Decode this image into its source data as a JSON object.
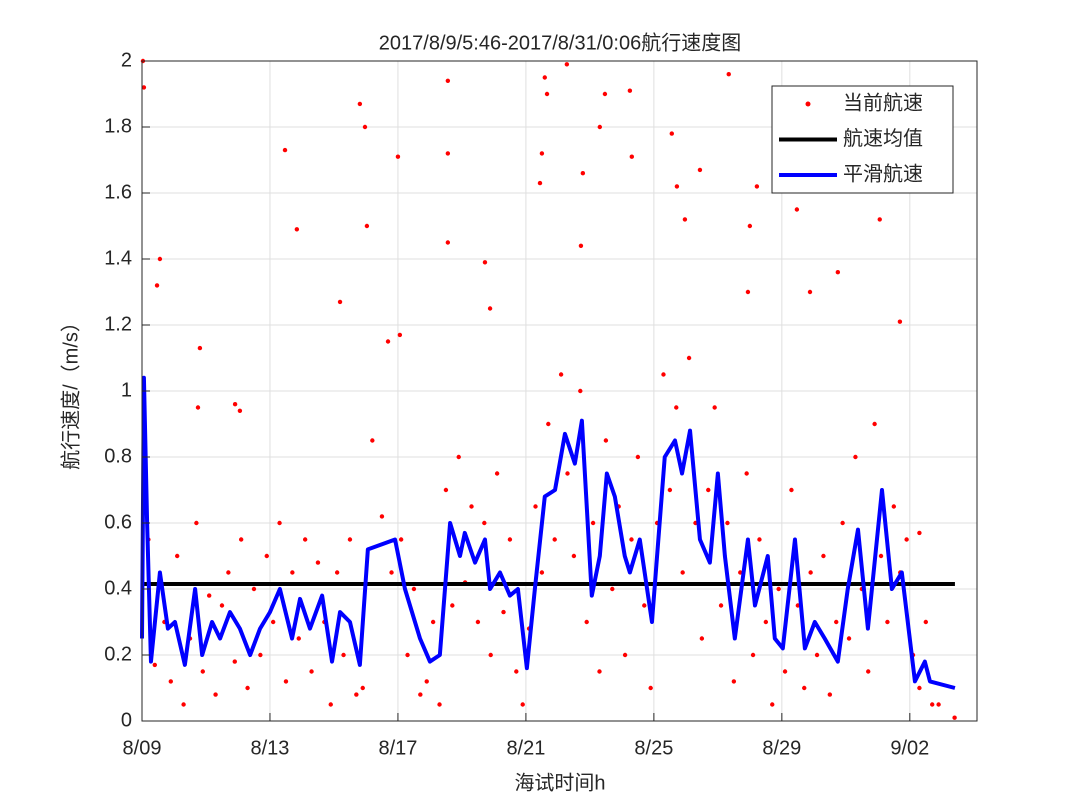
{
  "chart_data": {
    "type": "scatter",
    "title": "2017/8/9/5:46-2017/8/31/0:06航行速度图",
    "x_label": "海试时间h",
    "y_label": "航行速度/（m/s）",
    "xlim": [
      0,
      26.1
    ],
    "ylim": [
      0,
      2
    ],
    "xticks": [
      {
        "value": 0,
        "label": "8/09"
      },
      {
        "value": 4,
        "label": "8/13"
      },
      {
        "value": 8,
        "label": "8/17"
      },
      {
        "value": 12,
        "label": "8/21"
      },
      {
        "value": 16,
        "label": "8/25"
      },
      {
        "value": 20,
        "label": "8/29"
      },
      {
        "value": 24,
        "label": "9/02"
      }
    ],
    "yticks": [
      0,
      0.2,
      0.4,
      0.6,
      0.8,
      1,
      1.2,
      1.4,
      1.6,
      1.8,
      2
    ],
    "grid": true,
    "legend": "upper right",
    "series": [
      {
        "name": "当前航速",
        "type": "scatter",
        "color": "#ff0000",
        "x": [
          0.03,
          0.06,
          0.56,
          0.47,
          1.81,
          1.75,
          2.91,
          3.06,
          4.47,
          4.84,
          6.19,
          6.81,
          6.97,
          7.03,
          8.0,
          8.06,
          7.69,
          9.56,
          9.56,
          9.56,
          10.72,
          10.88,
          12.59,
          12.66,
          12.5,
          12.44,
          13.28,
          13.78,
          13.72,
          14.31,
          14.47,
          15.25,
          15.31,
          16.56,
          16.72,
          16.97,
          17.44,
          18.34,
          19.0,
          18.94,
          19.22,
          20.47,
          20.88,
          21.75,
          23.06,
          23.69,
          24.3,
          25.4,
          24.9,
          0.2,
          0.4,
          0.7,
          0.9,
          1.1,
          1.3,
          1.5,
          1.7,
          1.9,
          2.1,
          2.3,
          2.5,
          2.7,
          2.9,
          3.1,
          3.3,
          3.5,
          3.7,
          3.9,
          4.1,
          4.3,
          4.5,
          4.7,
          4.9,
          5.1,
          5.3,
          5.5,
          5.7,
          5.9,
          6.1,
          6.3,
          6.5,
          6.7,
          6.9,
          7.2,
          7.5,
          7.8,
          8.1,
          8.3,
          8.5,
          8.7,
          8.9,
          9.1,
          9.3,
          9.5,
          9.7,
          9.9,
          10.1,
          10.3,
          10.5,
          10.7,
          10.9,
          11.1,
          11.3,
          11.5,
          11.7,
          11.9,
          12.1,
          12.3,
          12.5,
          12.7,
          12.9,
          13.1,
          13.3,
          13.5,
          13.7,
          13.9,
          14.1,
          14.3,
          14.5,
          14.7,
          14.9,
          15.1,
          15.3,
          15.5,
          15.7,
          15.9,
          16.1,
          16.3,
          16.5,
          16.7,
          16.9,
          17.1,
          17.3,
          17.5,
          17.7,
          17.9,
          18.1,
          18.3,
          18.5,
          18.7,
          18.9,
          19.1,
          19.3,
          19.5,
          19.7,
          19.9,
          20.1,
          20.3,
          20.5,
          20.7,
          20.9,
          21.1,
          21.3,
          21.5,
          21.7,
          21.9,
          22.1,
          22.3,
          22.5,
          22.7,
          22.9,
          23.1,
          23.3,
          23.5,
          23.7,
          23.9,
          24.1,
          24.3,
          24.5,
          24.7
        ],
        "values": [
          2.0,
          1.92,
          1.4,
          1.32,
          1.13,
          0.95,
          0.96,
          0.94,
          1.73,
          1.49,
          1.27,
          1.87,
          1.8,
          1.5,
          1.71,
          1.17,
          1.15,
          1.94,
          1.72,
          1.45,
          1.39,
          1.25,
          1.95,
          1.9,
          1.72,
          1.63,
          1.99,
          1.66,
          1.44,
          1.8,
          1.9,
          1.91,
          1.71,
          1.78,
          1.62,
          1.52,
          1.67,
          1.96,
          1.5,
          1.3,
          1.62,
          1.55,
          1.3,
          1.36,
          1.52,
          1.21,
          0.57,
          0.01,
          0.05,
          0.55,
          0.17,
          0.3,
          0.12,
          0.5,
          0.05,
          0.25,
          0.6,
          0.15,
          0.38,
          0.08,
          0.35,
          0.45,
          0.18,
          0.55,
          0.1,
          0.4,
          0.2,
          0.5,
          0.3,
          0.6,
          0.12,
          0.45,
          0.25,
          0.55,
          0.15,
          0.48,
          0.3,
          0.05,
          0.45,
          0.2,
          0.55,
          0.08,
          0.1,
          0.85,
          0.62,
          0.45,
          0.55,
          0.2,
          0.4,
          0.08,
          0.12,
          0.3,
          0.05,
          0.7,
          0.35,
          0.8,
          0.42,
          0.65,
          0.3,
          0.6,
          0.2,
          0.75,
          0.33,
          0.55,
          0.15,
          0.05,
          0.28,
          0.65,
          0.45,
          0.9,
          0.55,
          1.05,
          0.75,
          0.5,
          1.0,
          0.3,
          0.6,
          0.15,
          0.85,
          0.4,
          0.65,
          0.2,
          0.55,
          0.8,
          0.35,
          0.1,
          0.6,
          1.05,
          0.7,
          0.95,
          0.45,
          1.1,
          0.6,
          0.25,
          0.7,
          0.95,
          0.35,
          0.6,
          0.12,
          0.45,
          0.75,
          0.2,
          0.55,
          0.3,
          0.05,
          0.4,
          0.15,
          0.7,
          0.35,
          0.1,
          0.45,
          0.2,
          0.5,
          0.08,
          0.3,
          0.6,
          0.25,
          0.8,
          0.4,
          0.15,
          0.9,
          0.5,
          0.3,
          0.65,
          0.45,
          0.55,
          0.2,
          0.1,
          0.3,
          0.05
        ]
      },
      {
        "name": "航速均值",
        "type": "line",
        "color": "#000000",
        "x": [
          0,
          25.41
        ],
        "values": [
          0.415,
          0.415
        ]
      },
      {
        "name": "平滑航速",
        "type": "line",
        "color": "#0000ff",
        "x": [
          0,
          0.06,
          0.16,
          0.28,
          0.56,
          0.81,
          1.03,
          1.34,
          1.66,
          1.88,
          2.19,
          2.44,
          2.75,
          3.06,
          3.38,
          3.69,
          4.0,
          4.31,
          4.69,
          4.94,
          5.25,
          5.63,
          5.94,
          6.19,
          6.5,
          6.81,
          7.06,
          7.91,
          8.22,
          8.69,
          9.0,
          9.31,
          9.63,
          9.94,
          10.09,
          10.41,
          10.72,
          10.88,
          11.19,
          11.5,
          11.75,
          12.03,
          12.28,
          12.59,
          12.91,
          13.22,
          13.53,
          13.75,
          14.06,
          14.31,
          14.53,
          14.78,
          15.09,
          15.25,
          15.56,
          15.94,
          16.34,
          16.66,
          16.88,
          17.13,
          17.44,
          17.75,
          18.0,
          18.22,
          18.53,
          18.94,
          19.16,
          19.56,
          19.78,
          20.03,
          20.41,
          20.72,
          21.03,
          21.34,
          21.75,
          22.06,
          22.38,
          22.69,
          23.13,
          23.44,
          23.75,
          24.16,
          24.47,
          24.63,
          25.41
        ],
        "values": [
          0.25,
          1.04,
          0.6,
          0.18,
          0.45,
          0.28,
          0.3,
          0.17,
          0.4,
          0.2,
          0.3,
          0.25,
          0.33,
          0.28,
          0.2,
          0.28,
          0.33,
          0.4,
          0.25,
          0.37,
          0.28,
          0.38,
          0.18,
          0.33,
          0.3,
          0.17,
          0.52,
          0.55,
          0.4,
          0.25,
          0.18,
          0.2,
          0.6,
          0.5,
          0.57,
          0.48,
          0.55,
          0.4,
          0.45,
          0.38,
          0.4,
          0.16,
          0.4,
          0.68,
          0.7,
          0.87,
          0.78,
          0.91,
          0.38,
          0.5,
          0.75,
          0.68,
          0.5,
          0.45,
          0.55,
          0.3,
          0.8,
          0.85,
          0.75,
          0.88,
          0.55,
          0.48,
          0.75,
          0.5,
          0.25,
          0.55,
          0.35,
          0.5,
          0.25,
          0.22,
          0.55,
          0.22,
          0.3,
          0.25,
          0.18,
          0.4,
          0.58,
          0.28,
          0.7,
          0.4,
          0.45,
          0.12,
          0.18,
          0.12,
          0.1
        ]
      }
    ]
  }
}
